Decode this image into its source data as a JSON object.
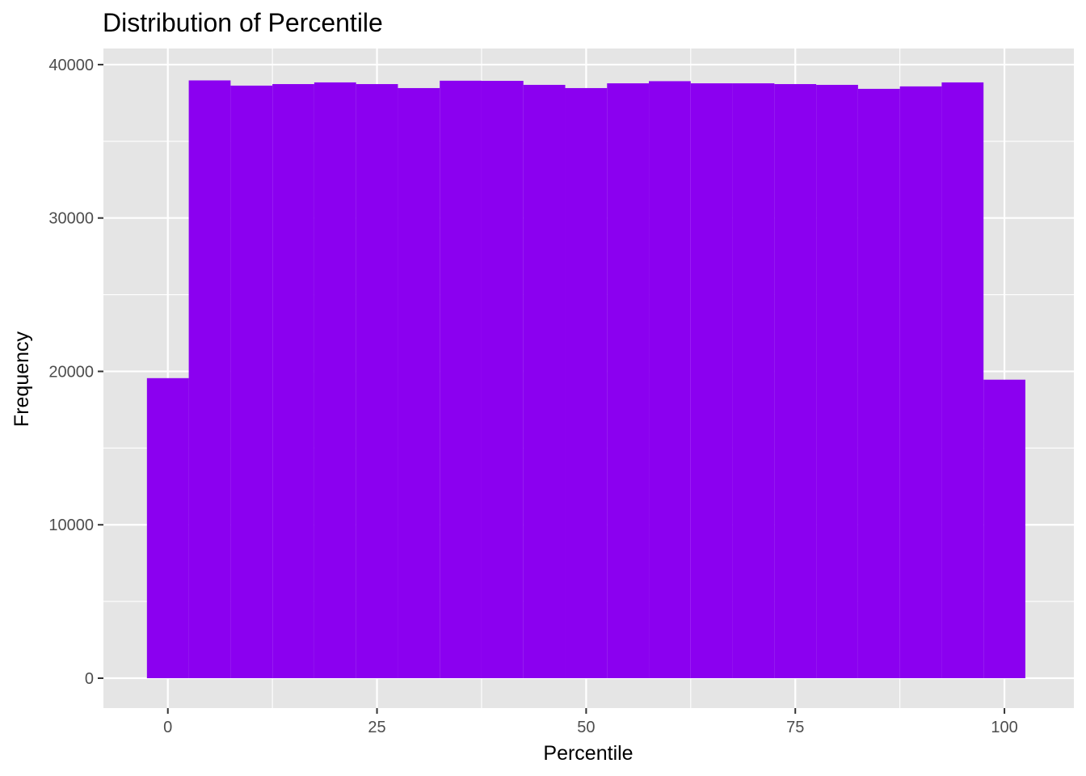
{
  "chart_data": {
    "type": "bar",
    "title": "Distribution of Percentile",
    "xlabel": "Percentile",
    "ylabel": "Frequency",
    "xlim": [
      -7.7,
      108.3
    ],
    "ylim": [
      -1950,
      41050
    ],
    "x_ticks": [
      0,
      25,
      50,
      75,
      100
    ],
    "y_ticks": [
      0,
      10000,
      20000,
      30000,
      40000
    ],
    "bin_width": 5,
    "bins": [
      {
        "center": 0,
        "value": 19560
      },
      {
        "center": 5,
        "value": 38970
      },
      {
        "center": 10,
        "value": 38630
      },
      {
        "center": 15,
        "value": 38730
      },
      {
        "center": 20,
        "value": 38840
      },
      {
        "center": 25,
        "value": 38730
      },
      {
        "center": 30,
        "value": 38470
      },
      {
        "center": 35,
        "value": 38950
      },
      {
        "center": 40,
        "value": 38940
      },
      {
        "center": 45,
        "value": 38680
      },
      {
        "center": 50,
        "value": 38470
      },
      {
        "center": 55,
        "value": 38780
      },
      {
        "center": 60,
        "value": 38920
      },
      {
        "center": 65,
        "value": 38780
      },
      {
        "center": 70,
        "value": 38780
      },
      {
        "center": 75,
        "value": 38730
      },
      {
        "center": 80,
        "value": 38680
      },
      {
        "center": 85,
        "value": 38420
      },
      {
        "center": 90,
        "value": 38580
      },
      {
        "center": 95,
        "value": 38840
      },
      {
        "center": 100,
        "value": 19460
      }
    ],
    "bar_color": "#8B00F0",
    "panel_color": "#E5E5E5",
    "grid": true,
    "legend": "none"
  }
}
